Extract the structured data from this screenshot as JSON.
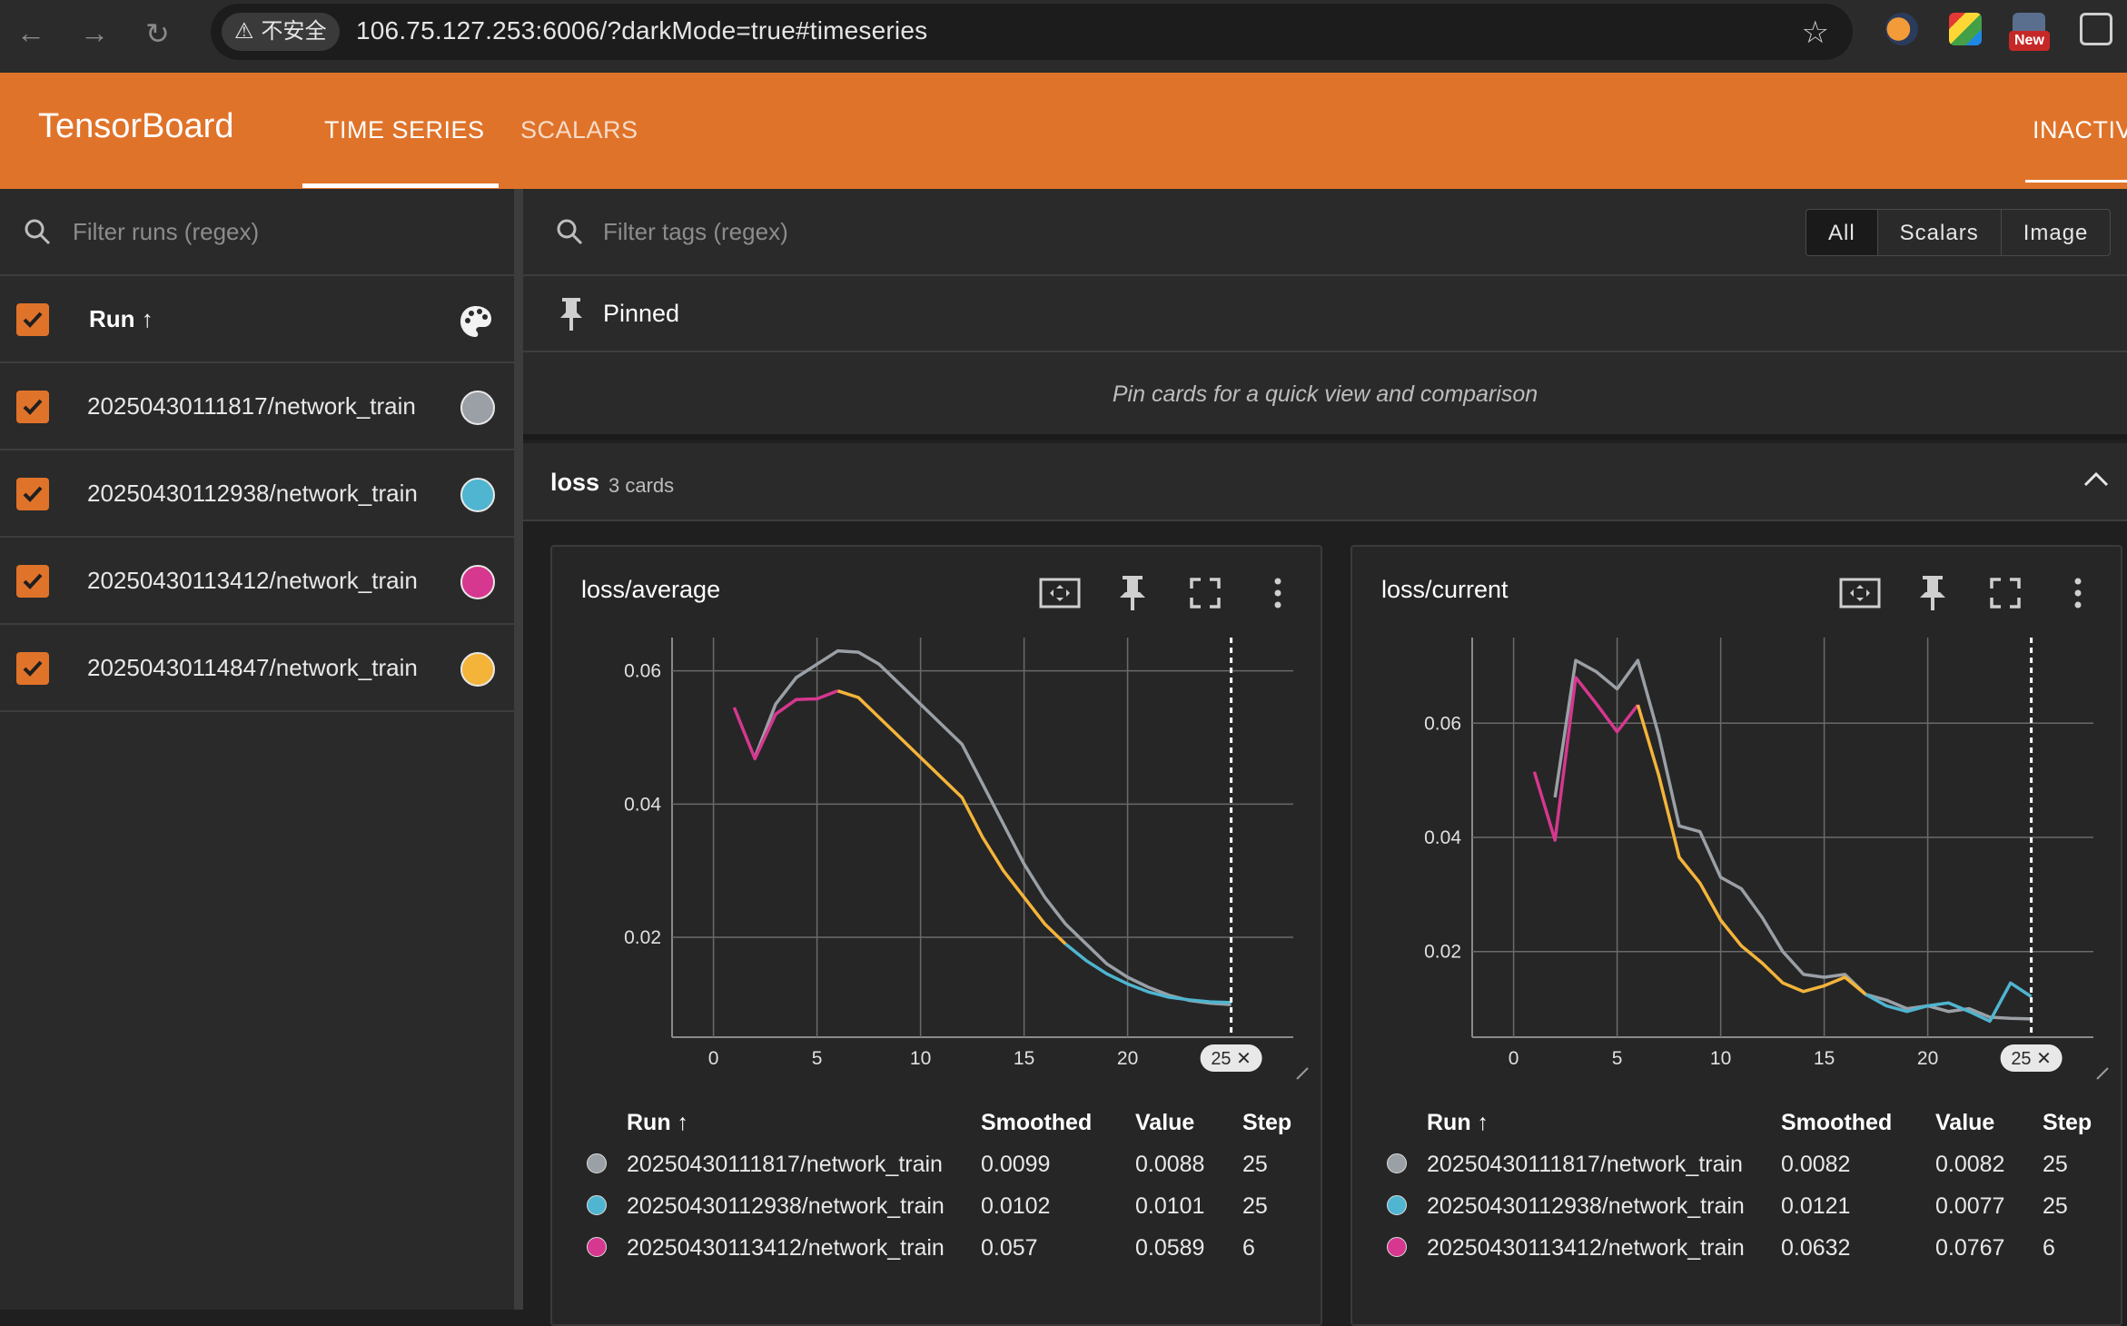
{
  "browser": {
    "security_label": "不安全",
    "url": "106.75.127.253:6006/?darkMode=true#timeseries",
    "new_badge": "New"
  },
  "header": {
    "app_title": "TensorBoard",
    "tabs": [
      {
        "label": "TIME SERIES",
        "active": true
      },
      {
        "label": "SCALARS",
        "active": false
      }
    ],
    "right_label": "INACTIV"
  },
  "sidebar": {
    "filter_placeholder": "Filter runs (regex)",
    "column_label": "Run ↑",
    "runs": [
      {
        "name": "20250430111817/network_train",
        "color": "#9aa0a6"
      },
      {
        "name": "20250430112938/network_train",
        "color": "#4fb5d0"
      },
      {
        "name": "20250430113412/network_train",
        "color": "#d6378f"
      },
      {
        "name": "20250430114847/network_train",
        "color": "#f4b43a"
      }
    ]
  },
  "main": {
    "tag_filter_placeholder": "Filter tags (regex)",
    "type_filters": [
      "All",
      "Scalars",
      "Image"
    ],
    "pinned": {
      "title": "Pinned",
      "empty_text": "Pin cards for a quick view and comparison"
    },
    "group": {
      "name": "loss",
      "count_label": "3 cards"
    },
    "legend_headers": {
      "run": "Run ↑",
      "smoothed": "Smoothed",
      "value": "Value",
      "step": "Step"
    },
    "cards": [
      {
        "title": "loss/average",
        "step_chip": "25 ✕",
        "rows": [
          {
            "run": "20250430111817/network_train",
            "smoothed": "0.0099",
            "value": "0.0088",
            "step": "25",
            "color": "#9aa0a6"
          },
          {
            "run": "20250430112938/network_train",
            "smoothed": "0.0102",
            "value": "0.0101",
            "step": "25",
            "color": "#4fb5d0"
          },
          {
            "run": "20250430113412/network_train",
            "smoothed": "0.057",
            "value": "0.0589",
            "step": "6",
            "color": "#d6378f"
          }
        ]
      },
      {
        "title": "loss/current",
        "step_chip": "25 ✕",
        "rows": [
          {
            "run": "20250430111817/network_train",
            "smoothed": "0.0082",
            "value": "0.0082",
            "step": "25",
            "color": "#9aa0a6"
          },
          {
            "run": "20250430112938/network_train",
            "smoothed": "0.0121",
            "value": "0.0077",
            "step": "25",
            "color": "#4fb5d0"
          },
          {
            "run": "20250430113412/network_train",
            "smoothed": "0.0632",
            "value": "0.0767",
            "step": "6",
            "color": "#d6378f"
          }
        ]
      }
    ]
  },
  "chart_data": [
    {
      "type": "line",
      "title": "loss/average",
      "xlim": [
        -2,
        28
      ],
      "ylim": [
        0.005,
        0.065
      ],
      "x_ticks": [
        0,
        5,
        10,
        15,
        20
      ],
      "y_ticks": [
        0.02,
        0.04,
        0.06
      ],
      "y_tick_labels": [
        "0.02",
        "0.04",
        "0.06"
      ],
      "step_marker": 25,
      "series": [
        {
          "name": "20250430111817/network_train",
          "color": "#9aa0a6",
          "x": [
            2,
            3,
            4,
            5,
            6,
            7,
            8,
            9,
            10,
            11,
            12,
            13,
            14,
            15,
            16,
            17,
            18,
            19,
            20,
            21,
            22,
            23,
            24,
            25
          ],
          "y": [
            0.047,
            0.055,
            0.059,
            0.061,
            0.063,
            0.0628,
            0.061,
            0.058,
            0.055,
            0.052,
            0.049,
            0.043,
            0.037,
            0.031,
            0.026,
            0.022,
            0.019,
            0.016,
            0.014,
            0.0125,
            0.0113,
            0.0105,
            0.0101,
            0.0099
          ]
        },
        {
          "name": "20250430112938/network_train",
          "color": "#4fb5d0",
          "x": [
            17,
            18,
            19,
            20,
            21,
            22,
            23,
            24,
            25
          ],
          "y": [
            0.019,
            0.0165,
            0.0145,
            0.013,
            0.0118,
            0.011,
            0.0106,
            0.0103,
            0.0102
          ]
        },
        {
          "name": "20250430113412/network_train",
          "color": "#d6378f",
          "x": [
            1,
            2,
            3,
            4,
            5,
            6
          ],
          "y": [
            0.0545,
            0.0468,
            0.0535,
            0.0557,
            0.0558,
            0.057
          ]
        },
        {
          "name": "20250430114847/network_train",
          "color": "#f4b43a",
          "x": [
            6,
            7,
            8,
            9,
            10,
            11,
            12,
            13,
            14,
            15,
            16,
            17
          ],
          "y": [
            0.057,
            0.056,
            0.053,
            0.05,
            0.047,
            0.044,
            0.041,
            0.035,
            0.03,
            0.026,
            0.022,
            0.019
          ]
        }
      ]
    },
    {
      "type": "line",
      "title": "loss/current",
      "xlim": [
        -2,
        28
      ],
      "ylim": [
        0.005,
        0.075
      ],
      "x_ticks": [
        0,
        5,
        10,
        15,
        20
      ],
      "y_ticks": [
        0.02,
        0.04,
        0.06
      ],
      "y_tick_labels": [
        "0.02",
        "0.04",
        "0.06"
      ],
      "step_marker": 25,
      "series": [
        {
          "name": "20250430111817/network_train",
          "color": "#9aa0a6",
          "x": [
            2,
            3,
            4,
            5,
            6,
            7,
            8,
            9,
            10,
            11,
            12,
            13,
            14,
            15,
            16,
            17,
            18,
            19,
            20,
            21,
            22,
            23,
            24,
            25
          ],
          "y": [
            0.047,
            0.071,
            0.069,
            0.066,
            0.071,
            0.058,
            0.042,
            0.041,
            0.033,
            0.031,
            0.026,
            0.02,
            0.016,
            0.0155,
            0.016,
            0.0125,
            0.0115,
            0.01,
            0.0105,
            0.0095,
            0.01,
            0.0085,
            0.0083,
            0.0082
          ]
        },
        {
          "name": "20250430112938/network_train",
          "color": "#4fb5d0",
          "x": [
            17,
            18,
            19,
            20,
            21,
            22,
            23,
            24,
            25
          ],
          "y": [
            0.0125,
            0.0105,
            0.0095,
            0.0105,
            0.011,
            0.0095,
            0.0078,
            0.0145,
            0.0121
          ]
        },
        {
          "name": "20250430113412/network_train",
          "color": "#d6378f",
          "x": [
            1,
            2,
            3,
            4,
            5,
            6
          ],
          "y": [
            0.0515,
            0.0395,
            0.068,
            0.0634,
            0.0585,
            0.0632
          ]
        },
        {
          "name": "20250430114847/network_train",
          "color": "#f4b43a",
          "x": [
            6,
            7,
            8,
            9,
            10,
            11,
            12,
            13,
            14,
            15,
            16,
            17
          ],
          "y": [
            0.0632,
            0.051,
            0.0365,
            0.032,
            0.0255,
            0.021,
            0.018,
            0.0145,
            0.013,
            0.014,
            0.0155,
            0.0125
          ]
        }
      ]
    }
  ]
}
